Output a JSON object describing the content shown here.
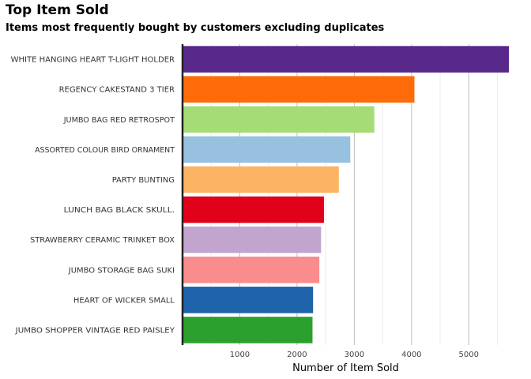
{
  "chart_data": {
    "type": "bar",
    "orientation": "horizontal",
    "title": "Top Item Sold",
    "subtitle": "Items most frequently bought by customers excluding duplicates",
    "xlabel": "Number of Item Sold",
    "ylabel": "",
    "xlim": [
      0,
      5700
    ],
    "xticks": [
      1000,
      2000,
      3000,
      4000,
      5000
    ],
    "grid": "vertical",
    "legend": "none",
    "categories": [
      "WHITE HANGING HEART T-LIGHT HOLDER",
      "REGENCY CAKESTAND 3 TIER",
      "JUMBO BAG RED RETROSPOT",
      "ASSORTED COLOUR BIRD ORNAMENT",
      "PARTY BUNTING",
      "LUNCH BAG  BLACK SKULL.",
      "STRAWBERRY CERAMIC TRINKET BOX",
      "JUMBO STORAGE BAG SUKI",
      "HEART OF WICKER SMALL",
      "JUMBO SHOPPER VINTAGE RED PAISLEY"
    ],
    "values": [
      5700,
      4050,
      3350,
      2930,
      2730,
      2470,
      2420,
      2390,
      2280,
      2270
    ],
    "colors": [
      "#58298b",
      "#ff6b09",
      "#a6dc76",
      "#97c1de",
      "#fdb462",
      "#e0001a",
      "#c2a5cf",
      "#f98c8c",
      "#1f63aa",
      "#2ca02c"
    ]
  }
}
